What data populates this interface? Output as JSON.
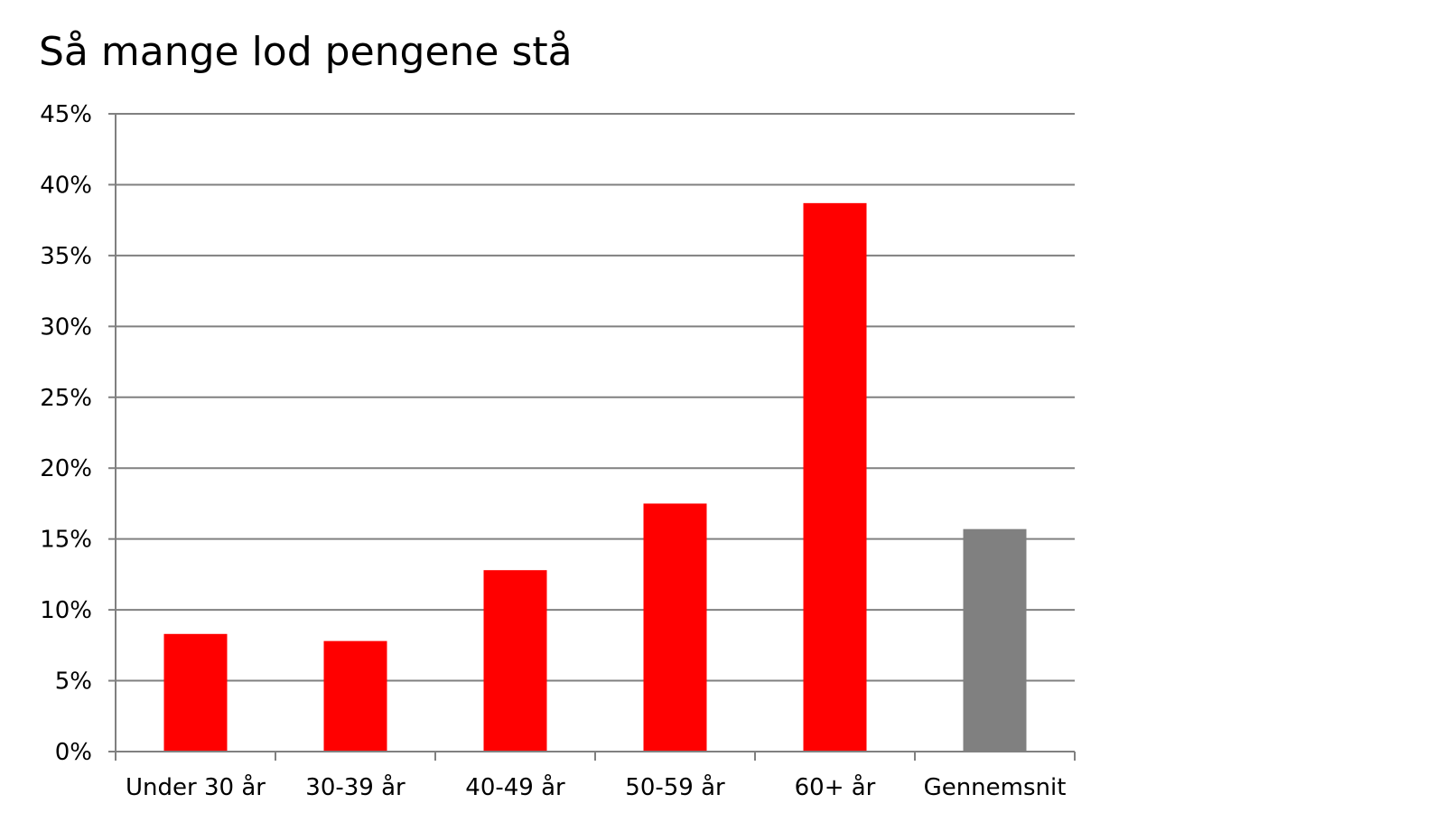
{
  "chart_data": {
    "type": "bar",
    "title": "Så mange lod pengene stå",
    "xlabel": "",
    "ylabel": "",
    "categories": [
      "Under 30 år",
      "30-39 år",
      "40-49 år",
      "50-59 år",
      "60+ år",
      "Gennemsnit"
    ],
    "values": [
      8.3,
      7.8,
      12.8,
      17.5,
      38.7,
      15.7
    ],
    "bar_colors": [
      "#ff0000",
      "#ff0000",
      "#ff0000",
      "#ff0000",
      "#ff0000",
      "#808080"
    ],
    "ylim": [
      0,
      45
    ],
    "yticks": [
      0,
      5,
      10,
      15,
      20,
      25,
      30,
      35,
      40,
      45
    ],
    "ytick_labels": [
      "0%",
      "5%",
      "10%",
      "15%",
      "20%",
      "25%",
      "30%",
      "35%",
      "40%",
      "45%"
    ],
    "grid": true,
    "gridline_color": "#808080",
    "legend": "none"
  }
}
